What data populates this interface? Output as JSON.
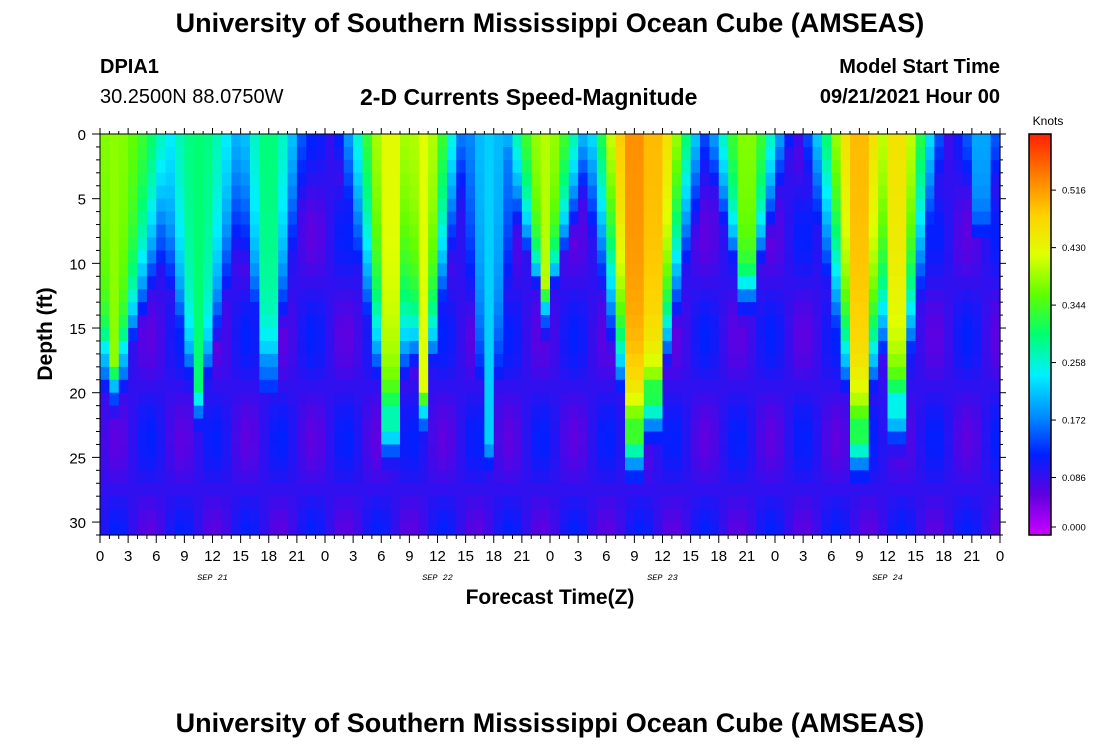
{
  "header": {
    "title": "University of Southern Mississippi Ocean Cube (AMSEAS)",
    "station": "DPIA1",
    "coords": "30.2500N  88.0750W",
    "subtitle": "2-D Currents Speed-Magnitude",
    "model_start_label": "Model Start Time",
    "model_start_value": "09/21/2021 Hour 00"
  },
  "footer": {
    "title": "University of Southern Mississippi Ocean Cube (AMSEAS)"
  },
  "chart_data": {
    "type": "heatmap",
    "title": "2-D Currents Speed-Magnitude",
    "xlabel": "Forecast Time(Z)",
    "ylabel": "Depth (ft)",
    "x_range_hours": [
      0,
      96
    ],
    "y_range": [
      0,
      31
    ],
    "y_inverted": true,
    "y_ticks": [
      0,
      5,
      10,
      15,
      20,
      25,
      30
    ],
    "x_tick_labels": [
      "0",
      "3",
      "6",
      "9",
      "12",
      "15",
      "18",
      "21",
      "0",
      "3",
      "6",
      "9",
      "12",
      "15",
      "18",
      "21",
      "0",
      "3",
      "6",
      "9",
      "12",
      "15",
      "18",
      "21",
      "0",
      "3",
      "6",
      "9",
      "12",
      "15",
      "18",
      "21",
      "0"
    ],
    "day_labels": [
      {
        "label": "SEP 21",
        "hour": 12
      },
      {
        "label": "SEP 22",
        "hour": 36
      },
      {
        "label": "SEP 23",
        "hour": 60
      },
      {
        "label": "SEP 24",
        "hour": 84
      }
    ],
    "colorbar": {
      "unit": "Knots",
      "tick_labels": [
        "0.516",
        "0.430",
        "0.344",
        "0.258",
        "0.172",
        "0.086",
        "0.000"
      ],
      "range": [
        0,
        0.6
      ],
      "colors": [
        "#cc00ff",
        "#6000e0",
        "#0020ff",
        "#0090ff",
        "#00f0ff",
        "#00ff70",
        "#60ff00",
        "#e0ff00",
        "#ffd000",
        "#ff7a00",
        "#ff2000"
      ]
    },
    "features": [
      {
        "hour": 1.5,
        "depth_bottom": 18,
        "depth_half": 12,
        "peak": 0.38
      },
      {
        "hour": 6,
        "depth_bottom": 10,
        "depth_half": 6,
        "peak": 0.17
      },
      {
        "hour": 10.5,
        "depth_bottom": 20,
        "depth_half": 9,
        "peak": 0.3
      },
      {
        "hour": 18,
        "depth_bottom": 19,
        "depth_half": 6,
        "peak": 0.3
      },
      {
        "hour": 31,
        "depth_bottom": 23,
        "depth_half": 7,
        "peak": 0.43
      },
      {
        "hour": 34.5,
        "depth_bottom": 20,
        "depth_half": 6,
        "peak": 0.42
      },
      {
        "hour": 47.5,
        "depth_bottom": 12,
        "depth_half": 7,
        "peak": 0.4
      },
      {
        "hour": 41.5,
        "depth_bottom": 24,
        "depth_half": 6,
        "peak": 0.22
      },
      {
        "hour": 57,
        "depth_bottom": 24,
        "depth_half": 7,
        "peak": 0.53
      },
      {
        "hour": 59,
        "depth_bottom": 21,
        "depth_half": 7,
        "peak": 0.5
      },
      {
        "hour": 69,
        "depth_bottom": 12,
        "depth_half": 6,
        "peak": 0.38
      },
      {
        "hour": 81,
        "depth_bottom": 24,
        "depth_half": 7,
        "peak": 0.5
      },
      {
        "hour": 85,
        "depth_bottom": 22,
        "depth_half": 6,
        "peak": 0.46
      },
      {
        "hour": 94,
        "depth_bottom": 8,
        "depth_half": 4,
        "peak": 0.2
      }
    ]
  }
}
